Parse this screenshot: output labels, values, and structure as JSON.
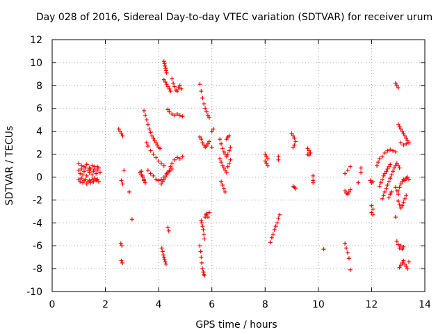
{
  "chart_data": {
    "type": "scatter",
    "title": "Day 028 of 2016, Sidereal Day-to-day VTEC variation (SDTVAR) for receiver urum",
    "xlabel": "GPS time / hours",
    "ylabel": "SDTVAR / TECUs",
    "xlim": [
      0,
      14
    ],
    "ylim": [
      -10,
      12
    ],
    "xticks": [
      0,
      2,
      4,
      6,
      8,
      10,
      12,
      14
    ],
    "yticks": [
      -10,
      -8,
      -6,
      -4,
      -2,
      0,
      2,
      4,
      6,
      8,
      10,
      12
    ],
    "xtick_labels": [
      "0",
      "2",
      "4",
      "6",
      "8",
      "10",
      "12",
      "14"
    ],
    "ytick_labels": [
      "-10",
      "-8",
      "-6",
      "-4",
      "-2",
      "0",
      "2",
      "4",
      "6",
      "8",
      "10",
      "12"
    ],
    "grid": true,
    "marker": "+",
    "color": "#ff0000",
    "series": [
      {
        "x": [
          1.0,
          1.05,
          1.1,
          1.15,
          1.2,
          1.25,
          1.3,
          1.35,
          1.4,
          1.45,
          1.5,
          1.55,
          1.6,
          1.65,
          1.7,
          1.75,
          1.8,
          1.0,
          1.05,
          1.1,
          1.15,
          1.2,
          1.25,
          1.3,
          1.35,
          1.4,
          1.45,
          1.5,
          1.55,
          1.6,
          1.65,
          1.7,
          1.75,
          1.0,
          1.1,
          1.2,
          1.3,
          1.4,
          1.5,
          1.6,
          1.7,
          2.5,
          2.55,
          2.6,
          2.65,
          2.6,
          2.65,
          2.58,
          2.62,
          2.6,
          2.64,
          2.7,
          2.9,
          3.0,
          3.45,
          3.5,
          3.55,
          3.6,
          3.65,
          3.7,
          3.75,
          3.8,
          3.85,
          3.9,
          3.95,
          4.0,
          4.05,
          3.55,
          3.6,
          3.7,
          3.8,
          3.9,
          4.0,
          4.1,
          4.2,
          3.6,
          3.7,
          3.8,
          3.9,
          4.0,
          4.1,
          4.2,
          4.3,
          4.4,
          4.5,
          3.3,
          3.35,
          3.4,
          3.45,
          3.5,
          3.45,
          3.4,
          3.35,
          4.1,
          4.15,
          4.2,
          4.25,
          4.3,
          4.35,
          4.4,
          4.45,
          4.5,
          4.2,
          4.22,
          4.24,
          4.26,
          4.28,
          4.3,
          4.2,
          4.25,
          4.3,
          4.35,
          4.4,
          4.45,
          4.5,
          4.55,
          4.6,
          4.65,
          4.7,
          4.75,
          4.8,
          4.85,
          4.35,
          4.4,
          4.5,
          4.6,
          4.7,
          4.8,
          4.9,
          4.6,
          4.7,
          4.8,
          4.9,
          4.35,
          4.38,
          4.12,
          4.15,
          4.18,
          4.2,
          4.22,
          4.25,
          4.28,
          5.55,
          5.6,
          5.65,
          5.7,
          5.75,
          5.8,
          5.85,
          5.9,
          5.55,
          5.6,
          5.65,
          5.7,
          5.75,
          5.8,
          5.85,
          5.9,
          6.0,
          5.6,
          5.62,
          5.65,
          5.68,
          5.7,
          5.72,
          5.75,
          5.78,
          5.8,
          5.85,
          5.9,
          5.55,
          5.58,
          5.6,
          5.62,
          5.65,
          5.68,
          5.7,
          5.72,
          6.0,
          6.05,
          6.3,
          6.35,
          6.4,
          6.45,
          6.5,
          6.55,
          6.6,
          6.65,
          6.7,
          6.3,
          6.35,
          6.4,
          6.45,
          6.5,
          6.55,
          6.6,
          6.65,
          6.7,
          6.35,
          6.4,
          6.45,
          6.5,
          6.55,
          6.6,
          6.65,
          8.0,
          8.05,
          8.1,
          8.0,
          8.05,
          8.1,
          8.5,
          8.5,
          8.2,
          8.25,
          8.3,
          8.35,
          8.4,
          8.45,
          8.5,
          8.55,
          9.0,
          9.05,
          9.1,
          9.15,
          9.1,
          9.05,
          9.05,
          9.1,
          9.15,
          9.6,
          9.65,
          9.7,
          9.6,
          9.65,
          9.8,
          9.8,
          9.8,
          10.2,
          11.0,
          11.05,
          11.1,
          11.15,
          11.2,
          11.0,
          11.05,
          11.1,
          11.15,
          11.0,
          11.1,
          11.2,
          11.2,
          11.6,
          11.6,
          11.5,
          12.0,
          12.05,
          12.0,
          12.05,
          11.95,
          12.0,
          12.05,
          12.2,
          12.25,
          12.3,
          12.4,
          12.5,
          12.6,
          12.7,
          12.8,
          12.9,
          12.4,
          12.45,
          12.5,
          12.55,
          12.6,
          12.65,
          12.7,
          12.75,
          12.8,
          12.85,
          12.9,
          12.3,
          12.35,
          12.4,
          12.45,
          12.5,
          12.55,
          12.6,
          12.65,
          12.7,
          12.65,
          12.7,
          12.75,
          12.9,
          12.95,
          13.0,
          12.9,
          12.95,
          13.0,
          13.05,
          13.1,
          13.15,
          13.2,
          13.0,
          13.05,
          13.1,
          13.15,
          13.2,
          13.25,
          13.3,
          13.35,
          13.4,
          13.05,
          13.1,
          13.15,
          13.2,
          13.25,
          13.3,
          13.35,
          13.4,
          13.0,
          13.05,
          13.1,
          13.15,
          13.2,
          13.25,
          13.3,
          13.35,
          13.4,
          12.95,
          13.0,
          13.05,
          12.9,
          12.95,
          13.0,
          13.0,
          13.05,
          13.1,
          13.15,
          13.2,
          13.25,
          13.3,
          13.1,
          13.2,
          13.3
        ],
        "y": [
          0.6,
          0.3,
          0.7,
          0.2,
          0.5,
          0.8,
          0.1,
          0.6,
          0.4,
          0.7,
          0.2,
          0.5,
          0.9,
          0.3,
          0.6,
          0.8,
          0.4,
          -0.2,
          -0.4,
          -0.1,
          -0.5,
          -0.3,
          -0.2,
          -0.6,
          -0.4,
          -0.3,
          -0.5,
          -0.2,
          -0.4,
          -0.1,
          -0.3,
          -0.2,
          -0.4,
          1.2,
          1.0,
          0.9,
          1.1,
          0.8,
          1.0,
          0.7,
          0.9,
          4.2,
          4.0,
          3.8,
          3.6,
          -0.3,
          -0.6,
          -5.8,
          -6.0,
          -7.3,
          -7.5,
          0.6,
          -1.3,
          -3.7,
          5.8,
          5.4,
          5.0,
          4.6,
          4.2,
          3.9,
          3.6,
          3.4,
          3.2,
          3.0,
          2.8,
          2.6,
          2.5,
          3.0,
          2.7,
          2.3,
          2.0,
          1.7,
          1.4,
          1.2,
          1.0,
          0.6,
          0.3,
          0.1,
          -0.2,
          -0.3,
          -0.2,
          0.0,
          0.3,
          0.5,
          0.7,
          0.4,
          0.2,
          0.0,
          -0.2,
          -0.5,
          -0.3,
          0.1,
          0.5,
          -0.6,
          -0.4,
          -0.2,
          0.0,
          0.2,
          0.4,
          0.6,
          0.9,
          1.2,
          10.1,
          9.9,
          9.7,
          9.5,
          9.3,
          9.1,
          8.5,
          8.3,
          8.1,
          7.9,
          7.7,
          7.5,
          8.6,
          8.2,
          7.9,
          7.6,
          7.5,
          7.8,
          8.0,
          7.7,
          5.9,
          5.7,
          5.5,
          5.4,
          5.5,
          5.4,
          5.3,
          1.5,
          1.7,
          1.6,
          1.8,
          -4.4,
          -4.7,
          -6.2,
          -6.5,
          -6.8,
          -7.0,
          -7.2,
          -7.4,
          -7.6,
          8.1,
          7.5,
          6.9,
          6.4,
          6.0,
          5.7,
          5.4,
          5.2,
          3.5,
          3.3,
          3.0,
          2.8,
          2.6,
          2.7,
          2.9,
          3.1,
          2.6,
          -3.8,
          -4.0,
          -4.3,
          -4.6,
          -5.0,
          -5.4,
          -3.5,
          -3.3,
          -3.2,
          -3.5,
          -3.1,
          -6.0,
          -6.5,
          -7.0,
          -7.5,
          -8.0,
          -8.3,
          -8.5,
          -8.6,
          4.0,
          4.2,
          3.3,
          2.9,
          2.5,
          2.2,
          2.0,
          1.8,
          2.0,
          2.3,
          2.6,
          1.6,
          1.3,
          1.0,
          0.8,
          0.6,
          0.4,
          0.9,
          1.2,
          1.5,
          -0.4,
          -0.7,
          -1.0,
          -1.3,
          3.3,
          3.5,
          3.6,
          2.0,
          1.8,
          1.6,
          1.4,
          1.2,
          1.0,
          1.8,
          1.5,
          -5.7,
          -5.3,
          -5.0,
          -4.6,
          -4.3,
          -4.0,
          -3.6,
          -3.3,
          3.8,
          3.6,
          3.4,
          3.1,
          2.8,
          2.6,
          -0.8,
          -0.9,
          -1.0,
          2.5,
          2.3,
          2.1,
          2.0,
          1.9,
          0.1,
          -0.5,
          -0.3,
          -6.3,
          -1.2,
          -1.4,
          -1.5,
          -1.3,
          -1.1,
          -5.8,
          -6.2,
          -6.6,
          -7.1,
          0.3,
          0.6,
          0.9,
          -8.1,
          0.8,
          0.4,
          -0.5,
          -2.5,
          -2.8,
          -3.1,
          -3.3,
          -0.3,
          -0.5,
          -0.4,
          1.0,
          1.3,
          1.6,
          1.8,
          2.1,
          2.3,
          2.4,
          2.3,
          2.2,
          -1.9,
          -1.6,
          -1.3,
          -1.0,
          -0.7,
          -0.4,
          -0.1,
          0.2,
          0.5,
          0.8,
          1.0,
          -0.8,
          -0.5,
          -0.2,
          0.1,
          0.3,
          0.5,
          0.7,
          0.9,
          1.1,
          -1.8,
          -1.5,
          -1.3,
          8.2,
          8.0,
          7.8,
          -3.5,
          -5.6,
          -5.9,
          -6.2,
          -6.0,
          -6.3,
          -6.1,
          4.6,
          4.4,
          4.2,
          4.0,
          3.8,
          3.6,
          3.4,
          3.2,
          3.0,
          -7.9,
          -7.7,
          -7.5,
          -7.3,
          -7.6,
          -7.8,
          -8.0,
          -7.4,
          -1.2,
          -0.9,
          -0.6,
          -0.4,
          -0.2,
          -0.3,
          -0.1,
          0.0,
          -0.2,
          1.2,
          1.0,
          0.8,
          -0.9,
          -1.2,
          -1.5,
          -2.1,
          -2.4,
          -2.7,
          -2.5,
          -2.2,
          -1.9,
          -1.6,
          3.0,
          2.8,
          2.9
        ]
      }
    ]
  }
}
